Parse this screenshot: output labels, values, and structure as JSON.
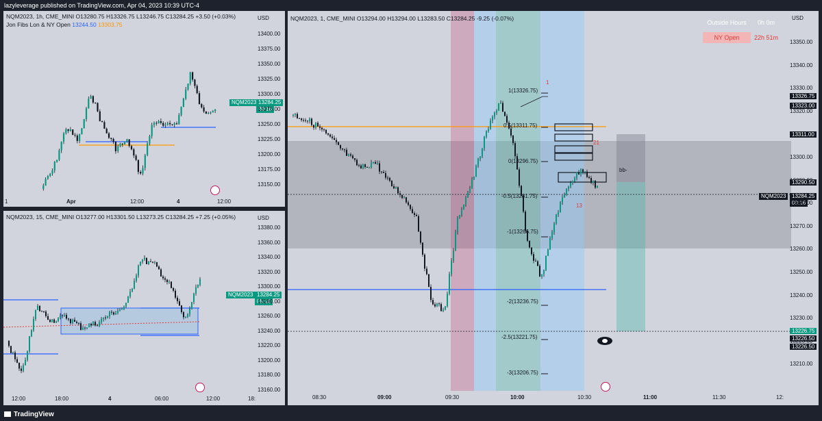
{
  "header": {
    "published_text": "lazyleverage published on TradingView.com, Apr 04, 2023 10:39 UTC-4"
  },
  "footer": {
    "brand": "TradingView"
  },
  "pane_1h": {
    "legend_line1": "NQM2023, 1h, CME_MINI  O13280.75  H13326.75  L13246.75  C13284.25  +3.50 (+0.03%)",
    "legend_line2_name": "Jon Fibs Lon & NY Open",
    "legend_line2_v1": "13244.50",
    "legend_line2_v2": "13303.75",
    "currency": "USD",
    "y_ticks": [
      "13400.00",
      "13375.00",
      "13350.00",
      "13325.00",
      "13300.00",
      "13275.00",
      "13250.00",
      "13225.00",
      "13200.00",
      "13175.00",
      "13150.00"
    ],
    "x_ticks": [
      "1",
      "Apr",
      "12:00",
      "4",
      "12:00"
    ],
    "symbol_tag": "NQM2023",
    "price_tag": "13284.25",
    "countdown": "20:16"
  },
  "pane_15m": {
    "legend": "NQM2023, 15, CME_MINI  O13277.00  H13301.50  L13273.25  C13284.25  +7.25 (+0.05%)",
    "currency": "USD",
    "y_ticks": [
      "13380.00",
      "13360.00",
      "13340.00",
      "13320.00",
      "13300.00",
      "13280.00",
      "13260.00",
      "13240.00",
      "13220.00",
      "13200.00",
      "13180.00",
      "13160.00"
    ],
    "x_ticks": [
      "12:00",
      "18:00",
      "4",
      "06:00",
      "12:00",
      "18:"
    ],
    "symbol_tag": "NQM2023",
    "price_tag": "13284.25",
    "countdown": "05:16"
  },
  "pane_1m": {
    "legend": "NQM2023, 1, CME_MINI  O13294.00  H13294.00  L13283.50  C13284.25  -9.25 (-0.07%)",
    "currency": "USD",
    "outside_hours_label": "Outside Hours",
    "outside_hours_value": "0h 0m",
    "ny_open_label": "NY Open",
    "ny_open_value": "22h 51m",
    "y_ticks": [
      "13350.00",
      "13340.00",
      "13330.00",
      "13320.00",
      "13310.00",
      "13300.00",
      "13290.00",
      "13280.00",
      "13270.00",
      "13260.00",
      "13250.00",
      "13240.00",
      "13230.00",
      "13220.00",
      "13210.00"
    ],
    "x_ticks": [
      "08:30",
      "09:00",
      "09:30",
      "10:00",
      "10:30",
      "11:00",
      "11:30",
      "12:"
    ],
    "fib_levels": [
      "1(13326.75)",
      "0.5(13311.75)",
      "0(13296.75)",
      "-0.5(13281.75)",
      "-1(13266.75)",
      "-2(13236.75)",
      "-2.5(13221.75)",
      "-3(13206.75)"
    ],
    "annotations": [
      "1",
      "21",
      "13",
      "bb-"
    ],
    "price_labels": [
      "13326.75",
      "13323.00",
      "13311.00",
      "13290.50",
      "13226.75",
      "13226.50",
      "13226.50"
    ],
    "symbol_tag": "NQM2023",
    "price_tag": "13284.25",
    "countdown": "00:16"
  },
  "colors": {
    "bg": "#d1d4dc",
    "bull": "#089981",
    "bear": "#131722",
    "orange": "#ff9800",
    "blue": "#2962ff",
    "red_zone": "#c2185b",
    "blue_zone": "#90caf9",
    "green_zone": "#4db6ac"
  }
}
